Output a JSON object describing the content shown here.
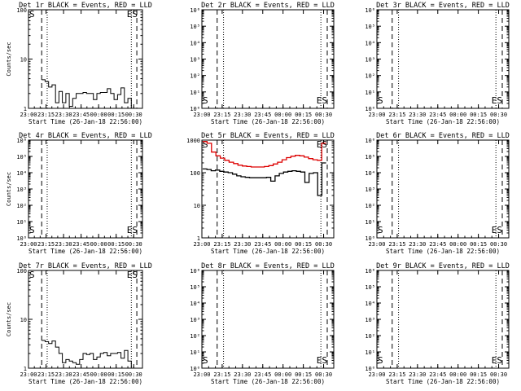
{
  "chart_data": [
    {
      "type": "line",
      "title": "Det 1r BLACK = Events, RED = LLD",
      "xlabel": "Start Time (26-Jan-18 22:56:00)",
      "ylabel": "Counts/sec",
      "yscale": "log",
      "ylim": [
        1,
        100
      ],
      "yticks": [
        "1",
        "10",
        "100"
      ],
      "xticks": [
        "23:00",
        "23:15",
        "23:30",
        "23:45",
        "00:00",
        "00:15",
        "00:30"
      ],
      "markers": [
        "S",
        "ES"
      ],
      "series": [
        {
          "values": [
            3.8,
            3.5,
            2.7,
            3.0,
            1.3,
            2.2,
            1.3,
            2.0,
            1.1,
            1.6,
            2.0,
            2.0,
            2.1,
            2.0,
            2.0,
            1.5,
            2.0,
            2.1,
            2.1,
            2.5,
            2.0,
            1.5,
            1.9,
            2.6,
            1.3,
            1.6
          ]
        }
      ]
    },
    {
      "type": "line",
      "title": "Det 2r BLACK = Events, RED = LLD",
      "xlabel": "Start Time (26-Jan-18 22:56:00)",
      "ylabel": "",
      "yscale": "log",
      "ylim": [
        1,
        1000000
      ],
      "yticks": [
        "10⁰",
        "10¹",
        "10²",
        "10³",
        "10⁴",
        "10⁵",
        "10⁶"
      ],
      "xticks": [
        "23:00",
        "23:15",
        "23:30",
        "23:45",
        "00:00",
        "00:15",
        "00:30"
      ],
      "markers": [
        "S",
        "ES"
      ],
      "series": []
    },
    {
      "type": "line",
      "title": "Det 3r BLACK = Events, RED = LLD",
      "xlabel": "Start Time (26-Jan-18 22:56:00)",
      "ylabel": "",
      "yscale": "log",
      "ylim": [
        1,
        1000000
      ],
      "yticks": [
        "10⁰",
        "10¹",
        "10²",
        "10³",
        "10⁴",
        "10⁵",
        "10⁶"
      ],
      "xticks": [
        "23:00",
        "23:15",
        "23:30",
        "23:45",
        "00:00",
        "00:15",
        "00:30"
      ],
      "markers": [
        "S",
        "ES"
      ],
      "series": []
    },
    {
      "type": "line",
      "title": "Det 4r BLACK = Events, RED = LLD",
      "xlabel": "Start Time (26-Jan-18 22:56:00)",
      "ylabel": "Counts/sec",
      "yscale": "log",
      "ylim": [
        1,
        1000000
      ],
      "yticks": [
        "10⁰",
        "10¹",
        "10²",
        "10³",
        "10⁴",
        "10⁵",
        "10⁶"
      ],
      "xticks": [
        "23:00",
        "23:15",
        "23:30",
        "23:45",
        "00:00",
        "00:15",
        "00:30"
      ],
      "markers": [
        "S",
        "ES"
      ],
      "series": []
    },
    {
      "type": "line",
      "title": "Det 5r BLACK = Events, RED = LLD",
      "xlabel": "Start Time (26-Jan-18 22:56:00)",
      "ylabel": "",
      "yscale": "log",
      "ylim": [
        1,
        1000
      ],
      "yticks": [
        "1",
        "10",
        "100",
        "1000"
      ],
      "xticks": [
        "23:00",
        "23:15",
        "23:30",
        "23:45",
        "00:00",
        "00:15",
        "00:30"
      ],
      "markers": [
        "S",
        "ES"
      ],
      "series": [
        {
          "color": "#dd0000",
          "values": [
            900,
            800,
            430,
            330,
            280,
            240,
            210,
            190,
            170,
            160,
            155,
            150,
            150,
            150,
            155,
            165,
            185,
            210,
            250,
            290,
            320,
            340,
            330,
            300,
            270,
            250,
            240,
            800
          ]
        },
        {
          "color": "#000000",
          "values": [
            130,
            125,
            115,
            120,
            110,
            105,
            100,
            90,
            80,
            75,
            72,
            70,
            70,
            70,
            70,
            72,
            55,
            80,
            95,
            105,
            110,
            115,
            110,
            105,
            50,
            95,
            100,
            20,
            200
          ]
        }
      ]
    },
    {
      "type": "line",
      "title": "Det 6r BLACK = Events, RED = LLD",
      "xlabel": "Start Time (26-Jan-18 22:56:00)",
      "ylabel": "",
      "yscale": "log",
      "ylim": [
        1,
        1000000
      ],
      "yticks": [
        "10⁰",
        "10¹",
        "10²",
        "10³",
        "10⁴",
        "10⁵",
        "10⁶"
      ],
      "xticks": [
        "23:00",
        "23:15",
        "23:30",
        "23:45",
        "00:00",
        "00:15",
        "00:30"
      ],
      "markers": [
        "S",
        "ES"
      ],
      "series": []
    },
    {
      "type": "line",
      "title": "Det 7r BLACK = Events, RED = LLD",
      "xlabel": "Start Time (26-Jan-18 22:56:00)",
      "ylabel": "Counts/sec",
      "yscale": "log",
      "ylim": [
        1,
        100
      ],
      "yticks": [
        "1",
        "10",
        "100"
      ],
      "xticks": [
        "23:00",
        "23:15",
        "23:30",
        "23:45",
        "00:00",
        "00:15",
        "00:30"
      ],
      "markers": [
        "S",
        "ES"
      ],
      "series": [
        {
          "values": [
            3.7,
            3.5,
            3.2,
            3.6,
            2.7,
            2.0,
            1.3,
            1.5,
            1.4,
            1.3,
            1.2,
            1.5,
            2.0,
            1.9,
            2.0,
            1.5,
            1.7,
            2.0,
            2.1,
            1.8,
            2.0,
            2.0,
            2.1,
            1.6,
            2.3,
            1.4
          ]
        }
      ]
    },
    {
      "type": "line",
      "title": "Det 8r BLACK = Events, RED = LLD",
      "xlabel": "Start Time (26-Jan-18 22:56:00)",
      "ylabel": "",
      "yscale": "log",
      "ylim": [
        1,
        1000000
      ],
      "yticks": [
        "10⁰",
        "10¹",
        "10²",
        "10³",
        "10⁴",
        "10⁵",
        "10⁶"
      ],
      "xticks": [
        "23:00",
        "23:15",
        "23:30",
        "23:45",
        "00:00",
        "00:15",
        "00:30"
      ],
      "markers": [
        "S",
        "ES"
      ],
      "series": []
    },
    {
      "type": "line",
      "title": "Det 9r BLACK = Events, RED = LLD",
      "xlabel": "Start Time (26-Jan-18 22:56:00)",
      "ylabel": "",
      "yscale": "log",
      "ylim": [
        1,
        1000000
      ],
      "yticks": [
        "10⁰",
        "10¹",
        "10²",
        "10³",
        "10⁴",
        "10⁵",
        "10⁶"
      ],
      "xticks": [
        "23:00",
        "23:15",
        "23:30",
        "23:45",
        "00:00",
        "00:15",
        "00:30"
      ],
      "markers": [
        "S",
        "ES"
      ],
      "series": []
    }
  ]
}
